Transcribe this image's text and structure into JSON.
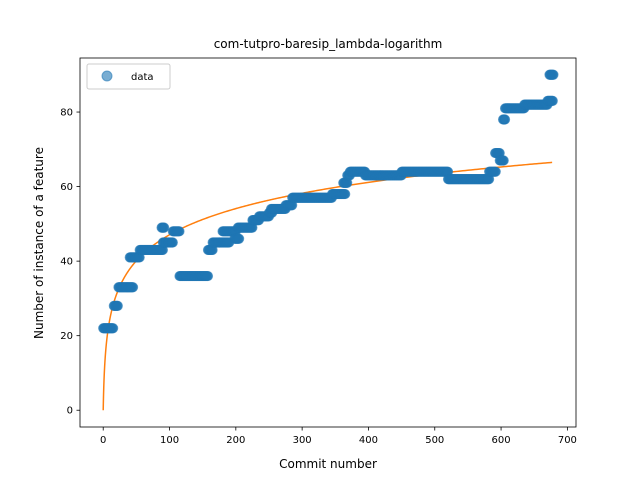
{
  "chart_data": {
    "type": "scatter",
    "title": "com-tutpro-baresip_lambda-logarithm",
    "xlabel": "Commit number",
    "ylabel": "Number of instance of a feature",
    "xlim": [
      -35,
      713
    ],
    "ylim": [
      -4.5,
      94.5
    ],
    "xticks": [
      0,
      100,
      200,
      300,
      400,
      500,
      600,
      700
    ],
    "yticks": [
      0,
      20,
      40,
      60,
      80
    ],
    "legend": {
      "placement": "top-left",
      "entries": [
        "data"
      ]
    },
    "colors": {
      "data": "#1f77b4",
      "fit": "#ff7f0e"
    },
    "series": [
      {
        "name": "data",
        "kind": "scatter",
        "segments": [
          [
            0,
            15,
            22
          ],
          [
            16,
            22,
            28
          ],
          [
            23,
            45,
            33
          ],
          [
            40,
            55,
            41
          ],
          [
            55,
            90,
            43
          ],
          [
            88,
            92,
            49
          ],
          [
            90,
            105,
            45
          ],
          [
            105,
            115,
            48
          ],
          [
            115,
            158,
            36
          ],
          [
            158,
            165,
            43
          ],
          [
            165,
            175,
            45
          ],
          [
            175,
            190,
            45
          ],
          [
            180,
            200,
            48
          ],
          [
            198,
            205,
            46
          ],
          [
            203,
            225,
            49
          ],
          [
            225,
            235,
            51
          ],
          [
            235,
            250,
            52
          ],
          [
            250,
            255,
            53
          ],
          [
            253,
            275,
            54
          ],
          [
            275,
            285,
            55
          ],
          [
            285,
            345,
            57
          ],
          [
            345,
            365,
            58
          ],
          [
            362,
            368,
            61
          ],
          [
            368,
            372,
            63
          ],
          [
            372,
            395,
            64
          ],
          [
            395,
            450,
            63
          ],
          [
            450,
            520,
            64
          ],
          [
            520,
            582,
            62
          ],
          [
            582,
            592,
            64
          ],
          [
            591,
            598,
            69
          ],
          [
            598,
            604,
            67
          ],
          [
            603,
            606,
            78
          ],
          [
            606,
            635,
            81
          ],
          [
            635,
            670,
            82
          ],
          [
            670,
            678,
            83
          ],
          [
            673,
            679,
            90
          ]
        ]
      },
      {
        "kind": "line",
        "fit": {
          "a": 0,
          "b": 10.2,
          "x_range": [
            0,
            677
          ]
        }
      }
    ]
  }
}
